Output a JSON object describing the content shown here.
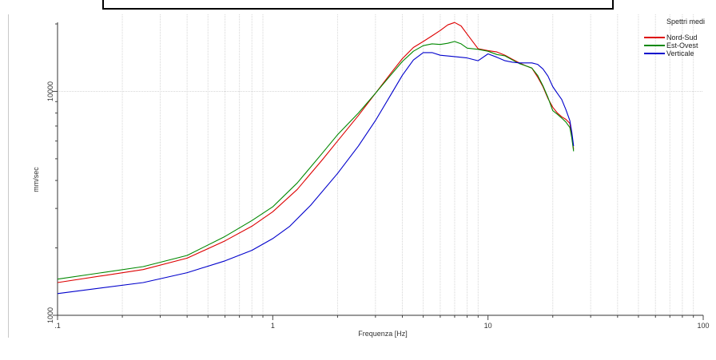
{
  "chart_data": {
    "type": "line",
    "title": "",
    "xlabel": "Frequenza [Hz]",
    "ylabel": "mm/sec",
    "x_scale": "log",
    "y_scale": "log",
    "xlim": [
      0.1,
      100
    ],
    "ylim": [
      1000,
      20000
    ],
    "x_tick_labels": [
      {
        "value": 0.1,
        "label": ".1"
      },
      {
        "value": 1,
        "label": "1"
      },
      {
        "value": 10,
        "label": "10"
      },
      {
        "value": 100,
        "label": "100"
      }
    ],
    "y_tick_labels": [
      {
        "value": 1000,
        "label": "1000"
      },
      {
        "value": 10000,
        "label": "10000"
      }
    ],
    "grid": true,
    "legend": {
      "title": "Spettri medi",
      "position": "top-right"
    },
    "series": [
      {
        "name": "Nord-Sud",
        "color": "#dd0000",
        "x": [
          0.1,
          0.25,
          0.4,
          0.6,
          0.8,
          1.0,
          1.3,
          1.7,
          2.0,
          2.5,
          3.0,
          3.5,
          4.0,
          4.5,
          5.0,
          5.5,
          6.0,
          6.5,
          7.0,
          7.5,
          8.0,
          9.0,
          10.0,
          11.0,
          12.0,
          13.0,
          14.0,
          15.0,
          16.0,
          17.0,
          18.0,
          19.0,
          20.0,
          21.0,
          22.0,
          23.0,
          24.0,
          24.5,
          25.0
        ],
        "y": [
          1400,
          1600,
          1800,
          2150,
          2500,
          2900,
          3650,
          4950,
          6000,
          7800,
          9800,
          11900,
          14000,
          15700,
          16700,
          17700,
          18700,
          19800,
          20300,
          19600,
          18000,
          15500,
          15200,
          15000,
          14500,
          13900,
          13400,
          13000,
          12700,
          11600,
          10500,
          9300,
          8500,
          8000,
          7700,
          7500,
          7200,
          6300,
          5500
        ]
      },
      {
        "name": "Est-Ovest",
        "color": "#008800",
        "x": [
          0.1,
          0.25,
          0.4,
          0.6,
          0.8,
          1.0,
          1.3,
          1.7,
          2.0,
          2.5,
          3.0,
          3.5,
          4.0,
          4.5,
          5.0,
          5.5,
          6.0,
          6.5,
          7.0,
          7.5,
          8.0,
          9.0,
          10.0,
          11.0,
          12.0,
          13.0,
          14.0,
          15.0,
          16.0,
          17.0,
          18.0,
          19.0,
          20.0,
          21.0,
          22.0,
          23.0,
          24.0,
          24.5,
          25.0
        ],
        "y": [
          1450,
          1650,
          1850,
          2250,
          2650,
          3050,
          3900,
          5300,
          6400,
          8000,
          9800,
          11700,
          13600,
          15100,
          16000,
          16300,
          16200,
          16400,
          16700,
          16300,
          15600,
          15400,
          15100,
          14600,
          14400,
          13800,
          13300,
          13000,
          12700,
          11800,
          10600,
          9400,
          8200,
          7900,
          7600,
          7300,
          6900,
          6200,
          5400
        ]
      },
      {
        "name": "Verticale",
        "color": "#0000cc",
        "x": [
          0.1,
          0.25,
          0.4,
          0.6,
          0.8,
          1.0,
          1.2,
          1.5,
          2.0,
          2.5,
          3.0,
          3.5,
          4.0,
          4.5,
          5.0,
          5.5,
          6.0,
          7.0,
          8.0,
          9.0,
          10.0,
          11.0,
          12.0,
          13.0,
          14.0,
          15.0,
          16.0,
          17.0,
          18.0,
          19.0,
          20.0,
          21.0,
          22.0,
          23.0,
          24.0,
          24.5,
          25.0
        ],
        "y": [
          1250,
          1400,
          1550,
          1750,
          1950,
          2200,
          2500,
          3100,
          4300,
          5700,
          7400,
          9500,
          11800,
          13800,
          14900,
          14900,
          14500,
          14300,
          14100,
          13700,
          14700,
          14200,
          13700,
          13500,
          13400,
          13400,
          13400,
          13200,
          12600,
          11700,
          10500,
          9800,
          9200,
          8300,
          7400,
          6600,
          5700
        ]
      }
    ]
  }
}
